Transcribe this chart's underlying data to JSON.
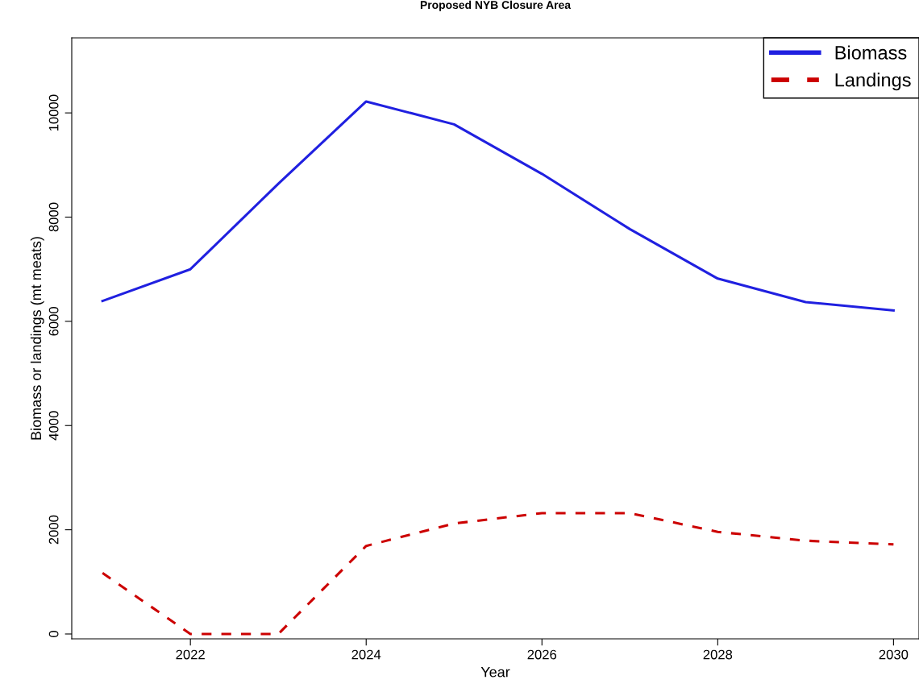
{
  "chart_data": {
    "type": "line",
    "title": "Proposed NYB Closure Area",
    "xlabel": "Year",
    "ylabel": "Biomass or landings (mt meats)",
    "x": [
      2021,
      2022,
      2023,
      2024,
      2025,
      2026,
      2027,
      2028,
      2029,
      2030
    ],
    "series": [
      {
        "name": "Biomass",
        "color": "#2020e0",
        "line_style": "solid",
        "values": [
          6390,
          7000,
          8640,
          10220,
          9780,
          8830,
          7770,
          6820,
          6370,
          6210
        ]
      },
      {
        "name": "Landings",
        "color": "#cc0000",
        "line_style": "dashed",
        "values": [
          1170,
          0,
          0,
          1690,
          2120,
          2320,
          2320,
          1960,
          1790,
          1720
        ]
      }
    ],
    "xlim": [
      2020.65,
      2030.29
    ],
    "ylim": [
      -93,
      11440
    ],
    "xticks": [
      2022,
      2024,
      2026,
      2028,
      2030
    ],
    "yticks": [
      0,
      2000,
      4000,
      6000,
      8000,
      10000
    ],
    "grid": false,
    "legend": "top right",
    "marker": "none"
  }
}
